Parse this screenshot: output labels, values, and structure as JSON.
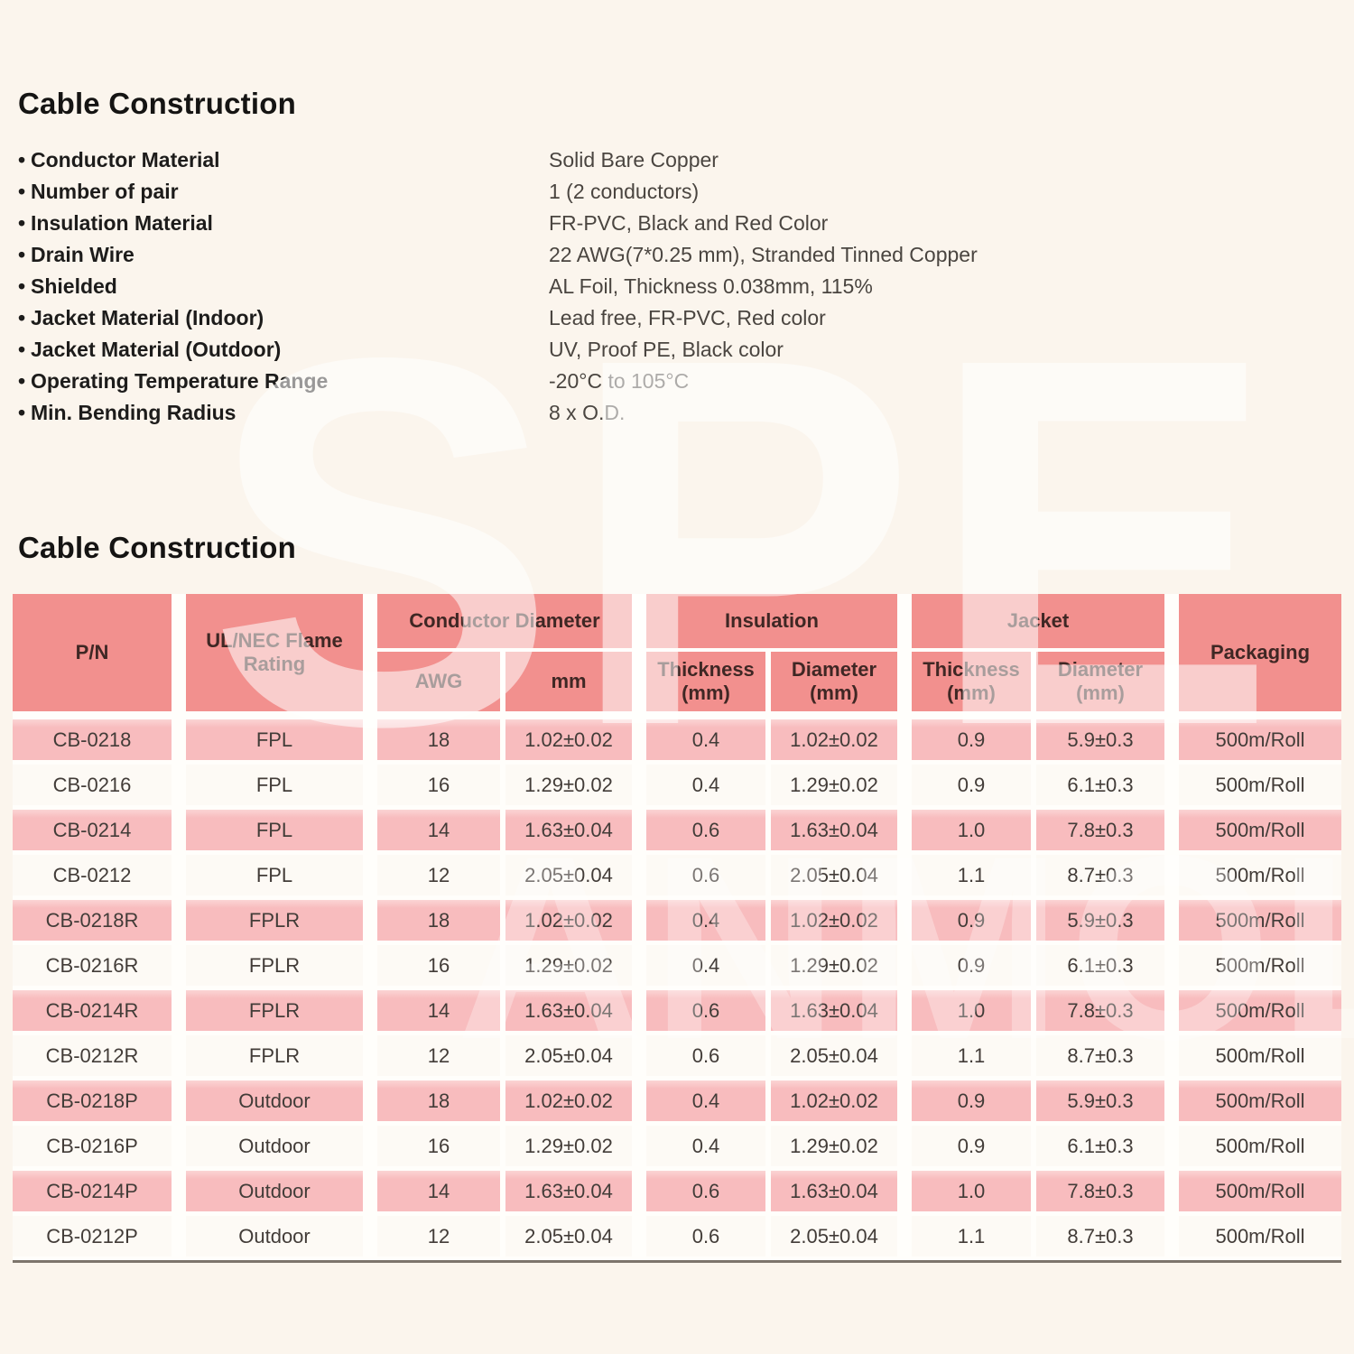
{
  "sections": {
    "construction": {
      "title": "Cable Construction",
      "specs": [
        {
          "label": "Conductor Material",
          "value": "Solid Bare Copper"
        },
        {
          "label": "Number of pair",
          "value": "1 (2 conductors)"
        },
        {
          "label": "Insulation Material",
          "value": "FR-PVC, Black and Red Color"
        },
        {
          "label": "Drain Wire",
          "value": "22 AWG(7*0.25 mm), Stranded Tinned Copper"
        },
        {
          "label": "Shielded",
          "value": "AL Foil, Thickness 0.038mm, 115%"
        },
        {
          "label": "Jacket Material (Indoor)",
          "value": "Lead free, FR-PVC, Red color"
        },
        {
          "label": "Jacket Material (Outdoor)",
          "value": "UV, Proof PE, Black color"
        },
        {
          "label": "Operating Temperature Range",
          "value": "-20°C to 105°C"
        },
        {
          "label": "Min. Bending Radius",
          "value": "8 x O.D."
        }
      ]
    },
    "table_section": {
      "title": "Cable Construction",
      "header": {
        "pn": "P/N",
        "flame_rating": "UL/NEC Flame Rating",
        "conductor_group": "Conductor Diameter",
        "awg": "AWG",
        "mm": "mm",
        "insulation_group": "Insulation",
        "ins_thickness": "Thickness (mm)",
        "ins_diameter": "Diameter (mm)",
        "jacket_group": "Jacket",
        "jk_thickness": "Thickness (mm)",
        "jk_diameter": "Diameter (mm)",
        "packaging": "Packaging"
      },
      "rows": [
        [
          "CB-0218",
          "FPL",
          "18",
          "1.02±0.02",
          "0.4",
          "1.02±0.02",
          "0.9",
          "5.9±0.3",
          "500m/Roll"
        ],
        [
          "CB-0216",
          "FPL",
          "16",
          "1.29±0.02",
          "0.4",
          "1.29±0.02",
          "0.9",
          "6.1±0.3",
          "500m/Roll"
        ],
        [
          "CB-0214",
          "FPL",
          "14",
          "1.63±0.04",
          "0.6",
          "1.63±0.04",
          "1.0",
          "7.8±0.3",
          "500m/Roll"
        ],
        [
          "CB-0212",
          "FPL",
          "12",
          "2.05±0.04",
          "0.6",
          "2.05±0.04",
          "1.1",
          "8.7±0.3",
          "500m/Roll"
        ],
        [
          "CB-0218R",
          "FPLR",
          "18",
          "1.02±0.02",
          "0.4",
          "1.02±0.02",
          "0.9",
          "5.9±0.3",
          "500m/Roll"
        ],
        [
          "CB-0216R",
          "FPLR",
          "16",
          "1.29±0.02",
          "0.4",
          "1.29±0.02",
          "0.9",
          "6.1±0.3",
          "500m/Roll"
        ],
        [
          "CB-0214R",
          "FPLR",
          "14",
          "1.63±0.04",
          "0.6",
          "1.63±0.04",
          "1.0",
          "7.8±0.3",
          "500m/Roll"
        ],
        [
          "CB-0212R",
          "FPLR",
          "12",
          "2.05±0.04",
          "0.6",
          "2.05±0.04",
          "1.1",
          "8.7±0.3",
          "500m/Roll"
        ],
        [
          "CB-0218P",
          "Outdoor",
          "18",
          "1.02±0.02",
          "0.4",
          "1.02±0.02",
          "0.9",
          "5.9±0.3",
          "500m/Roll"
        ],
        [
          "CB-0216P",
          "Outdoor",
          "16",
          "1.29±0.02",
          "0.4",
          "1.29±0.02",
          "0.9",
          "6.1±0.3",
          "500m/Roll"
        ],
        [
          "CB-0214P",
          "Outdoor",
          "14",
          "1.63±0.04",
          "0.6",
          "1.63±0.04",
          "1.0",
          "7.8±0.3",
          "500m/Roll"
        ],
        [
          "CB-0212P",
          "Outdoor",
          "12",
          "2.05±0.04",
          "0.6",
          "2.05±0.04",
          "1.1",
          "8.7±0.3",
          "500m/Roll"
        ]
      ]
    }
  },
  "watermark": {
    "top": "SPE",
    "bottom": "ANMOL"
  },
  "colors": {
    "page_bg": "#fbf5ed",
    "table_header_bg": "#f2908e",
    "row_pink": "#f8bcbe",
    "row_light": "#fdfaf5"
  }
}
